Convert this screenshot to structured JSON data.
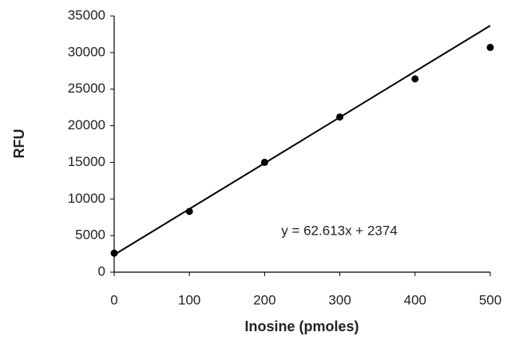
{
  "chart_data": {
    "type": "scatter",
    "x_label": "Inosine (pmoles)",
    "y_label": "RFU",
    "annotation": "y = 62.613x + 2374",
    "x": [
      0,
      100,
      200,
      300,
      400,
      500
    ],
    "values": [
      2600,
      8300,
      15000,
      21200,
      26400,
      30700
    ],
    "color": "#000000",
    "trendline": {
      "x": [
        0,
        500
      ],
      "values": [
        2374,
        33680.5
      ],
      "color": "#000000"
    },
    "xlim": [
      0,
      500
    ],
    "xticks": [
      0,
      100,
      200,
      300,
      400,
      500
    ],
    "ylim": [
      0,
      35000
    ],
    "yticks": [
      0,
      5000,
      10000,
      15000,
      20000,
      25000,
      30000,
      35000
    ],
    "grid": false
  }
}
